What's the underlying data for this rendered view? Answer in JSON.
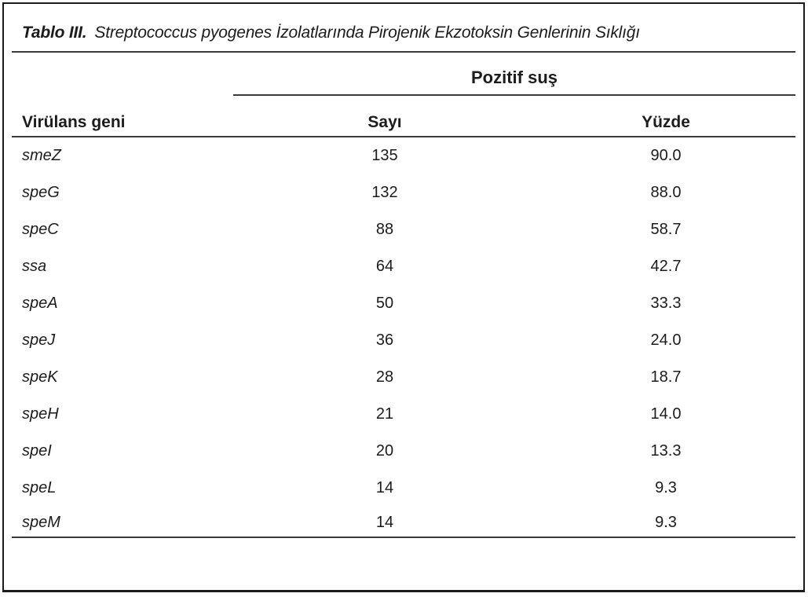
{
  "table": {
    "title_label": "Tablo III.",
    "title_text": "Streptococcus pyogenes İzolatlarında Pirojenik Ekzotoksin Genlerinin Sıklığı",
    "group_header": "Pozitif suş",
    "columns": {
      "gene": "Virülans geni",
      "count": "Sayı",
      "percent": "Yüzde"
    },
    "rows": [
      {
        "gene": "smeZ",
        "count": "135",
        "percent": "90.0"
      },
      {
        "gene": "speG",
        "count": "132",
        "percent": "88.0"
      },
      {
        "gene": "speC",
        "count": "88",
        "percent": "58.7"
      },
      {
        "gene": "ssa",
        "count": "64",
        "percent": "42.7"
      },
      {
        "gene": "speA",
        "count": "50",
        "percent": "33.3"
      },
      {
        "gene": "speJ",
        "count": "36",
        "percent": "24.0"
      },
      {
        "gene": "speK",
        "count": "28",
        "percent": "18.7"
      },
      {
        "gene": "speH",
        "count": "21",
        "percent": "14.0"
      },
      {
        "gene": "speI",
        "count": "20",
        "percent": "13.3"
      },
      {
        "gene": "speL",
        "count": "14",
        "percent": "9.3"
      },
      {
        "gene": "speM",
        "count": "14",
        "percent": "9.3"
      }
    ]
  },
  "colors": {
    "text": "#1c1c1c",
    "rule": "#3a3a3a",
    "frame": "#1b1b1b",
    "background": "#ffffff"
  }
}
